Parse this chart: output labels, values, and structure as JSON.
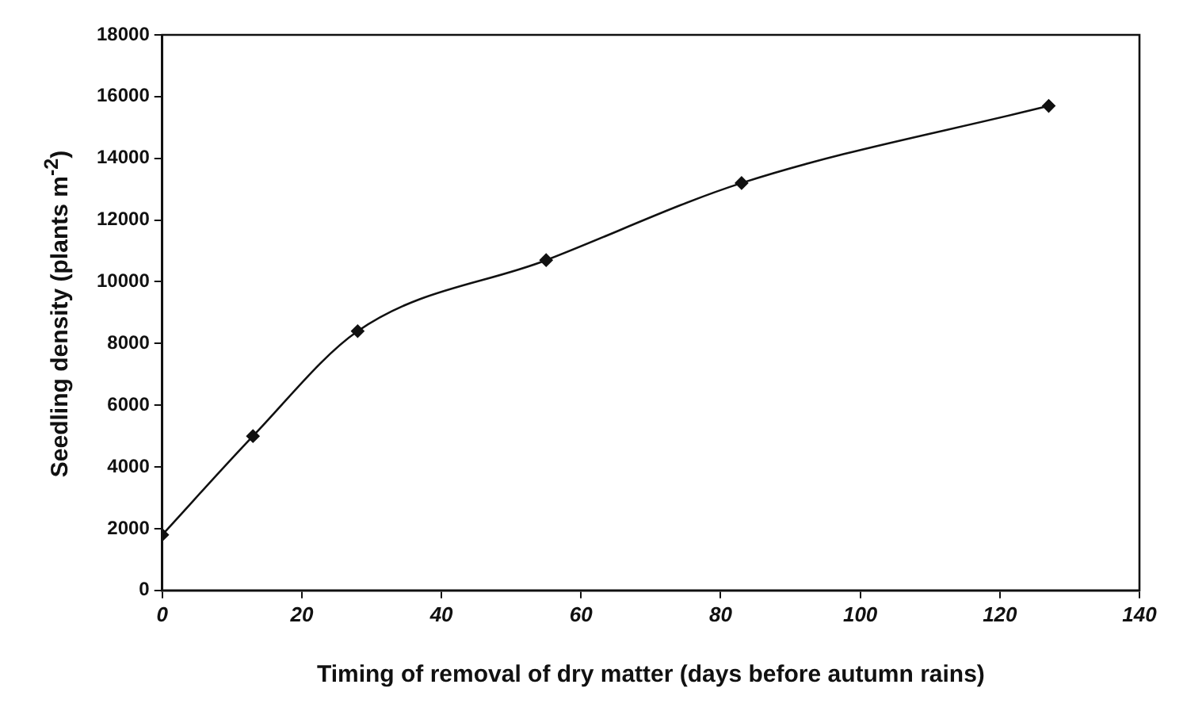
{
  "chart_data": {
    "type": "line",
    "xlabel": "Timing of removal of dry matter (days before autumn rains)",
    "ylabel": "Seedling density (plants m$^{-2}$)",
    "x": [
      0,
      13,
      28,
      55,
      83,
      127
    ],
    "series": [
      {
        "color": "#111111",
        "values": [
          1800,
          5000,
          8400,
          10700,
          13200,
          15700
        ]
      }
    ],
    "xlim": [
      0,
      140
    ],
    "xticks": [
      0,
      20,
      40,
      60,
      80,
      100,
      120,
      140
    ],
    "ylim": [
      0,
      18000
    ],
    "yticks": [
      0,
      2000,
      4000,
      6000,
      8000,
      10000,
      12000,
      14000,
      16000,
      18000
    ],
    "grid": false,
    "legend": false,
    "marker": "diamond",
    "line_style": "solid"
  }
}
